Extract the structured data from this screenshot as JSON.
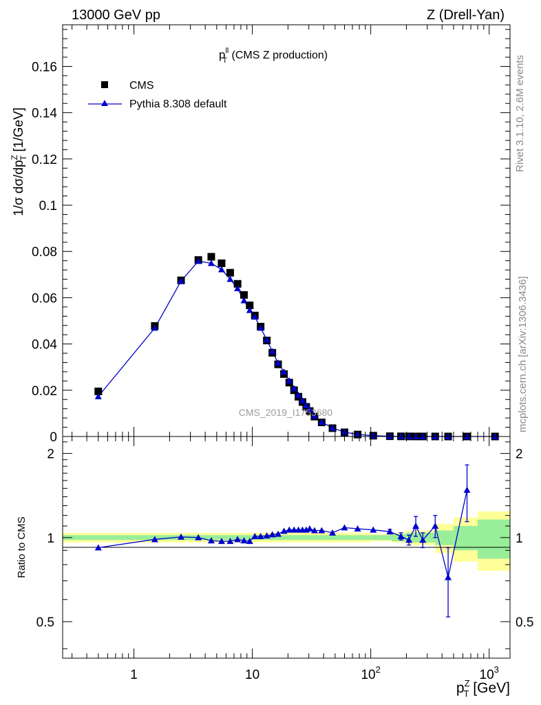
{
  "header": {
    "energy": "13000 GeV pp",
    "process": "Z (Drell-Yan)"
  },
  "side": {
    "rivet": "Rivet 3.1.10,  2.6M events",
    "source": "mcplots.cern.ch [arXiv:1306.3436]"
  },
  "main_plot": {
    "title_main": "p",
    "title_sup": "ll",
    "title_sub": "T",
    "title_rest": " (CMS Z production)",
    "ylabel": "1/σ dσ/dp",
    "ylabel_sup": "Z",
    "ylabel_sub": "T",
    "ylabel_unit": " [1/GeV]",
    "watermark": "CMS_2019_I1753680",
    "legend": {
      "data_label": "CMS",
      "mc_label": "Pythia 8.308 default"
    }
  },
  "ratio_plot": {
    "ylabel": "Ratio to CMS"
  },
  "xaxis": {
    "label_main": "p",
    "label_sup": "Z",
    "label_sub": "T",
    "label_unit": " [GeV]"
  },
  "colors": {
    "data": "#000000",
    "mc": "#0000cc",
    "band_inner": "#99ee99",
    "band_outer": "#ffff99"
  },
  "chart_data": {
    "type": "line",
    "x_scale": "log",
    "xlim": [
      0.25,
      1500
    ],
    "x_ticks": [
      {
        "v": 1,
        "base": "1",
        "exp": ""
      },
      {
        "v": 10,
        "base": "10",
        "exp": ""
      },
      {
        "v": 100,
        "base": "10",
        "exp": "2"
      },
      {
        "v": 1000,
        "base": "10",
        "exp": "3"
      }
    ],
    "main": {
      "ylim": [
        0,
        0.178
      ],
      "y_ticks": [
        {
          "v": 0,
          "label": "0"
        },
        {
          "v": 0.02,
          "label": "0.02"
        },
        {
          "v": 0.04,
          "label": "0.04"
        },
        {
          "v": 0.06,
          "label": "0.06"
        },
        {
          "v": 0.08,
          "label": "0.08"
        },
        {
          "v": 0.1,
          "label": "0.1"
        },
        {
          "v": 0.12,
          "label": "0.12"
        },
        {
          "v": 0.14,
          "label": "0.14"
        },
        {
          "v": 0.16,
          "label": "0.16"
        }
      ]
    },
    "ratio": {
      "ylim": [
        0.37,
        2.3
      ],
      "y_scale": "log",
      "y_ticks": [
        {
          "v": 0.5,
          "label": "0.5"
        },
        {
          "v": 1,
          "label": "1"
        },
        {
          "v": 2,
          "label": "2"
        }
      ]
    },
    "series": [
      {
        "name": "CMS",
        "x": [
          0.5,
          1.5,
          2.5,
          3.5,
          4.5,
          5.5,
          6.5,
          7.5,
          8.5,
          9.5,
          10.5,
          11.75,
          13.25,
          14.75,
          16.5,
          18.5,
          20.5,
          22.5,
          24.5,
          26.5,
          28.5,
          30.5,
          33.5,
          38.5,
          47.5,
          60,
          77.5,
          105,
          145,
          180,
          210,
          240,
          275,
          350,
          450,
          650,
          1120
        ],
        "y": [
          0.0195,
          0.0478,
          0.0675,
          0.0763,
          0.0777,
          0.0749,
          0.0708,
          0.066,
          0.0612,
          0.0567,
          0.0523,
          0.0475,
          0.0415,
          0.0362,
          0.0312,
          0.027,
          0.0233,
          0.02,
          0.0172,
          0.0149,
          0.0128,
          0.011,
          0.0086,
          0.0061,
          0.0036,
          0.0018,
          0.00085,
          0.00035,
          0.00012,
          6e-05,
          4e-05,
          2.5e-05,
          1.6e-05,
          8e-06,
          3e-06,
          1e-06,
          3e-07
        ]
      },
      {
        "name": "Pythia 8.308 default",
        "x": [
          0.5,
          1.5,
          2.5,
          3.5,
          4.5,
          5.5,
          6.5,
          7.5,
          8.5,
          9.5,
          10.5,
          11.75,
          13.25,
          14.75,
          16.5,
          18.5,
          20.5,
          22.5,
          24.5,
          26.5,
          28.5,
          30.5,
          33.5,
          38.5,
          47.5,
          60,
          77.5,
          105,
          145,
          180,
          210,
          240,
          275,
          350,
          450,
          650,
          1120
        ],
        "y": [
          0.0173,
          0.0469,
          0.0672,
          0.0758,
          0.0749,
          0.0722,
          0.068,
          0.064,
          0.0588,
          0.0546,
          0.0517,
          0.0469,
          0.0418,
          0.0368,
          0.0318,
          0.0279,
          0.0241,
          0.0208,
          0.0179,
          0.0155,
          0.0134,
          0.0115,
          0.0089,
          0.0063,
          0.0037,
          0.0019,
          0.00089,
          0.00036,
          0.00012,
          6e-05,
          4e-05,
          2.6e-05,
          1.6e-05,
          8e-06,
          2e-06,
          1.5e-06,
          3e-07
        ],
        "ratio": [
          0.92,
          0.985,
          1.005,
          1.0,
          0.975,
          0.97,
          0.97,
          0.985,
          0.975,
          0.97,
          1.01,
          1.01,
          1.015,
          1.025,
          1.03,
          1.055,
          1.065,
          1.065,
          1.065,
          1.065,
          1.065,
          1.075,
          1.06,
          1.06,
          1.04,
          1.085,
          1.075,
          1.065,
          1.05,
          1.01,
          0.98,
          1.1,
          0.98,
          1.1,
          0.72,
          1.48,
          null
        ],
        "ratio_err": [
          0,
          0,
          0,
          0,
          0,
          0,
          0,
          0,
          0,
          0,
          0,
          0,
          0,
          0,
          0,
          0,
          0,
          0,
          0,
          0,
          0,
          0,
          0,
          0,
          0,
          0,
          0,
          0,
          0.02,
          0.03,
          0.04,
          0.09,
          0.06,
          0.1,
          0.2,
          0.34,
          0
        ]
      }
    ],
    "uncertainty_band": {
      "x_edges": [
        0.25,
        100,
        150,
        200,
        350,
        500,
        800,
        1500
      ],
      "inner": [
        0.02,
        0.02,
        0.03,
        0.04,
        0.06,
        0.1,
        0.16
      ],
      "outer": [
        0.04,
        0.03,
        0.04,
        0.06,
        0.12,
        0.18,
        0.24
      ]
    }
  }
}
